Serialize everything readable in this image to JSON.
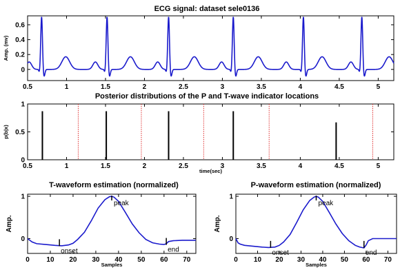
{
  "chart_data": [
    {
      "type": "line",
      "title": "ECG signal: dataset sele0136",
      "xlabel": "",
      "ylabel": "Amp. (mv)",
      "xlim": [
        0.5,
        5.2
      ],
      "ylim": [
        -0.15,
        0.72
      ],
      "xticks": [
        0.5,
        1,
        1.5,
        2,
        2.5,
        3,
        3.5,
        4,
        4.5,
        5
      ],
      "xtick_labels": [
        "0.5",
        "1",
        "1.5",
        "2",
        "2.5",
        "3",
        "3.5",
        "4",
        "4.5",
        "5"
      ],
      "yticks": [
        0,
        0.2,
        0.4,
        0.6
      ],
      "ytick_labels": [
        "0",
        "0.2",
        "0.4",
        "0.6"
      ],
      "series": [
        {
          "color": "#1a1acc",
          "beats": [
            {
              "p": 0.52,
              "r": 0.68,
              "t": 0.99
            },
            {
              "p": 1.37,
              "r": 1.52,
              "t": 1.82
            },
            {
              "p": 2.17,
              "r": 2.31,
              "t": 2.64
            },
            {
              "p": 2.99,
              "r": 3.14,
              "t": 3.46
            },
            {
              "p": 3.82,
              "r": 4.04,
              "t": 4.28
            },
            {
              "p": 4.65,
              "r": 4.79,
              "t": 5.14
            }
          ],
          "r_amp": 0.67,
          "p_amp": 0.1,
          "t_amp": 0.17,
          "s_depth": -0.1
        }
      ]
    },
    {
      "type": "bar",
      "title": "Posterior distributions of the P and T-wave indicator locations",
      "xlabel": "time(sec)",
      "ylabel": "p(b|x)",
      "xlim": [
        0.5,
        5.2
      ],
      "ylim": [
        0,
        1
      ],
      "xticks": [
        0.5,
        1,
        1.5,
        2,
        2.5,
        3,
        3.5,
        4,
        4.5,
        5
      ],
      "xtick_labels": [
        "0.5",
        "1",
        "1.5",
        "2",
        "2.5",
        "3",
        "3.5",
        "4",
        "4.5",
        "5"
      ],
      "yticks": [
        0,
        0.5,
        1
      ],
      "ytick_labels": [
        "0",
        "0.5",
        "1"
      ],
      "black_spikes": [
        {
          "x": 0.69,
          "y": 0.87
        },
        {
          "x": 1.51,
          "y": 0.87
        },
        {
          "x": 2.31,
          "y": 0.87
        },
        {
          "x": 3.14,
          "y": 0.87
        },
        {
          "x": 4.46,
          "y": 0.67
        }
      ],
      "red_dotted_lines": [
        1.15,
        1.96,
        2.76,
        3.6,
        4.93
      ],
      "colors": {
        "spike": "#000000",
        "dotted": "#e03030"
      }
    },
    {
      "type": "line",
      "title": "T-waveform estimation (normalized)",
      "xlabel": "Samples",
      "ylabel": "Amp.",
      "xlim": [
        0,
        74
      ],
      "ylim": [
        -0.35,
        1.05
      ],
      "xticks": [
        0,
        10,
        20,
        30,
        40,
        50,
        60,
        70
      ],
      "xtick_labels": [
        "0",
        "10",
        "20",
        "30",
        "40",
        "50",
        "60",
        "70"
      ],
      "yticks": [
        0,
        1
      ],
      "ytick_labels": [
        "0",
        "1"
      ],
      "x": [
        0,
        1,
        2,
        4,
        8,
        12,
        15,
        18,
        20,
        22,
        25,
        28,
        31,
        34,
        36,
        37,
        38,
        40,
        43,
        46,
        49,
        52,
        55,
        58,
        60,
        61,
        62,
        64,
        68,
        72,
        74
      ],
      "y": [
        0.0,
        -0.04,
        -0.08,
        -0.12,
        -0.14,
        -0.16,
        -0.17,
        -0.15,
        -0.11,
        -0.02,
        0.15,
        0.42,
        0.72,
        0.92,
        0.99,
        1.0,
        0.98,
        0.88,
        0.62,
        0.35,
        0.14,
        -0.02,
        -0.1,
        -0.13,
        -0.14,
        -0.12,
        -0.07,
        -0.05,
        -0.04,
        -0.04,
        -0.04
      ],
      "annotations": [
        {
          "label": "peak",
          "x": 37,
          "y": 1.0
        },
        {
          "label": "onset",
          "x": 14,
          "y": -0.08
        },
        {
          "label": "end",
          "x": 61,
          "y": -0.05
        }
      ],
      "color": "#1a1acc"
    },
    {
      "type": "line",
      "title": "P-waveform estimation (normalized)",
      "xlabel": "Samples",
      "ylabel": "Amp.",
      "xlim": [
        0,
        74
      ],
      "ylim": [
        -0.35,
        1.05
      ],
      "xticks": [
        0,
        10,
        20,
        30,
        40,
        50,
        60,
        70
      ],
      "xtick_labels": [
        "0",
        "10",
        "20",
        "30",
        "40",
        "50",
        "60",
        "70"
      ],
      "yticks": [
        0,
        1
      ],
      "ytick_labels": [
        "0",
        "1"
      ],
      "x": [
        0,
        1,
        2,
        4,
        8,
        12,
        15,
        18,
        20,
        22,
        25,
        28,
        31,
        34,
        36,
        37,
        38,
        40,
        43,
        46,
        49,
        52,
        55,
        57,
        59,
        60,
        61,
        63,
        66,
        70,
        74
      ],
      "y": [
        0.0,
        -0.1,
        -0.13,
        -0.16,
        -0.18,
        -0.2,
        -0.21,
        -0.2,
        -0.16,
        -0.08,
        0.1,
        0.38,
        0.68,
        0.9,
        0.98,
        1.0,
        0.98,
        0.88,
        0.62,
        0.35,
        0.12,
        -0.05,
        -0.16,
        -0.2,
        -0.22,
        -0.15,
        -0.05,
        0.0,
        0.0,
        0.0,
        0.0
      ],
      "annotations": [
        {
          "label": "peak",
          "x": 37,
          "y": 1.0
        },
        {
          "label": "onset",
          "x": 16,
          "y": -0.12
        },
        {
          "label": "end",
          "x": 59,
          "y": -0.12
        }
      ],
      "color": "#1a1acc"
    }
  ]
}
